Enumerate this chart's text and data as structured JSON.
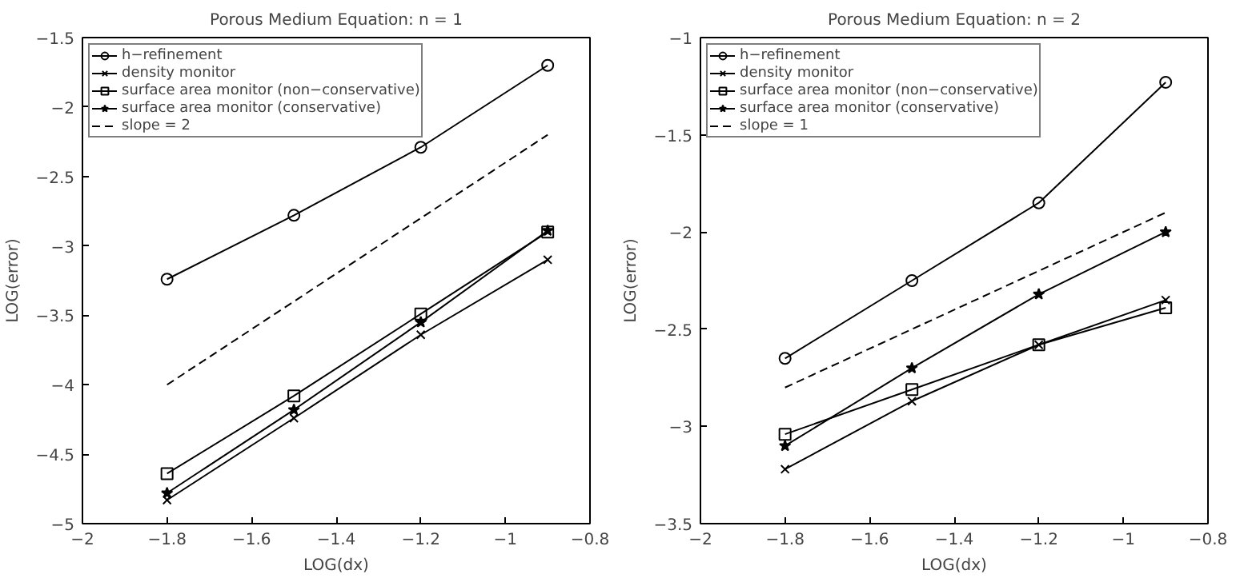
{
  "chart_data": [
    {
      "type": "line",
      "title": "Porous Medium Equation: n = 1",
      "xlabel": "LOG(dx)",
      "ylabel": "LOG(error)",
      "x": [
        -1.8,
        -1.5,
        -1.2,
        -0.9
      ],
      "xlim": [
        -2,
        -0.8
      ],
      "xticks": [
        -2,
        -1.8,
        -1.6,
        -1.4,
        -1.2,
        -1,
        -0.8
      ],
      "ylim": [
        -5,
        -1.5
      ],
      "yticks": [
        -5,
        -4.5,
        -4,
        -3.5,
        -3,
        -2.5,
        -2,
        -1.5
      ],
      "grid": false,
      "legend": "top left",
      "series": [
        {
          "name": "h−refinement",
          "color": "#000000",
          "marker": "circle",
          "line_style": "solid",
          "values": [
            -3.24,
            -2.78,
            -2.29,
            -1.7
          ]
        },
        {
          "name": "density monitor",
          "color": "#000000",
          "marker": "cross",
          "line_style": "solid",
          "values": [
            -4.83,
            -4.24,
            -3.64,
            -3.1
          ]
        },
        {
          "name": "surface area monitor (non−conservative)",
          "color": "#000000",
          "marker": "square",
          "line_style": "solid",
          "values": [
            -4.64,
            -4.08,
            -3.49,
            -2.9
          ]
        },
        {
          "name": "surface area monitor (conservative)",
          "color": "#000000",
          "marker": "star",
          "line_style": "solid",
          "values": [
            -4.78,
            -4.18,
            -3.55,
            -2.89
          ]
        },
        {
          "name": "slope = 2",
          "color": "#000000",
          "marker": "none",
          "line_style": "dashed",
          "values": [
            -4.0,
            -3.4,
            -2.8,
            -2.2
          ]
        }
      ]
    },
    {
      "type": "line",
      "title": "Porous Medium Equation: n = 2",
      "xlabel": "LOG(dx)",
      "ylabel": "LOG(error)",
      "x": [
        -1.8,
        -1.5,
        -1.2,
        -0.9
      ],
      "xlim": [
        -2,
        -0.8
      ],
      "xticks": [
        -2,
        -1.8,
        -1.6,
        -1.4,
        -1.2,
        -1,
        -0.8
      ],
      "ylim": [
        -3.5,
        -1
      ],
      "yticks": [
        -3.5,
        -3,
        -2.5,
        -2,
        -1.5,
        -1
      ],
      "grid": false,
      "legend": "top left",
      "series": [
        {
          "name": "h−refinement",
          "color": "#000000",
          "marker": "circle",
          "line_style": "solid",
          "values": [
            -2.65,
            -2.25,
            -1.85,
            -1.23
          ]
        },
        {
          "name": "density monitor",
          "color": "#000000",
          "marker": "cross",
          "line_style": "solid",
          "values": [
            -3.22,
            -2.87,
            -2.58,
            -2.35
          ]
        },
        {
          "name": "surface area monitor (non−conservative)",
          "color": "#000000",
          "marker": "square",
          "line_style": "solid",
          "values": [
            -3.04,
            -2.81,
            -2.58,
            -2.39
          ]
        },
        {
          "name": "surface area monitor (conservative)",
          "color": "#000000",
          "marker": "star",
          "line_style": "solid",
          "values": [
            -3.1,
            -2.7,
            -2.32,
            -2.0
          ]
        },
        {
          "name": "slope = 1",
          "color": "#000000",
          "marker": "none",
          "line_style": "dashed",
          "values": [
            -2.8,
            -2.5,
            -2.2,
            -1.9
          ]
        }
      ]
    }
  ]
}
